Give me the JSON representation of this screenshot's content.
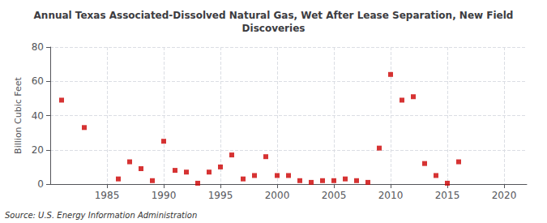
{
  "chart_data": {
    "type": "scatter",
    "title": "Annual Texas Associated-Dissolved Natural Gas, Wet After Lease Separation, New Field\nDiscoveries",
    "ylabel": "Billion Cubic Feet",
    "source": "Source: U.S. Energy Information Administration",
    "color": "#cc0000",
    "marker": "square",
    "grid": true,
    "xlim": [
      1980,
      2022
    ],
    "ylim": [
      0,
      80
    ],
    "xticks": [
      1985,
      1990,
      1995,
      2000,
      2005,
      2010,
      2015,
      2020
    ],
    "yticks": [
      0,
      20,
      40,
      60,
      80
    ],
    "x": [
      1981,
      1983,
      1986,
      1987,
      1988,
      1989,
      1990,
      1991,
      1992,
      1993,
      1994,
      1995,
      1996,
      1997,
      1998,
      1999,
      2000,
      2001,
      2002,
      2003,
      2004,
      2005,
      2006,
      2007,
      2008,
      2009,
      2010,
      2011,
      2012,
      2013,
      2014,
      2015,
      2016
    ],
    "values": [
      49,
      33,
      3,
      13,
      9,
      2,
      25,
      8,
      7,
      0.5,
      7,
      10,
      17,
      3,
      5,
      16,
      5,
      5,
      2,
      1,
      2,
      2,
      3,
      2,
      1,
      21,
      64,
      49,
      51,
      12,
      5,
      0.5,
      13
    ]
  }
}
